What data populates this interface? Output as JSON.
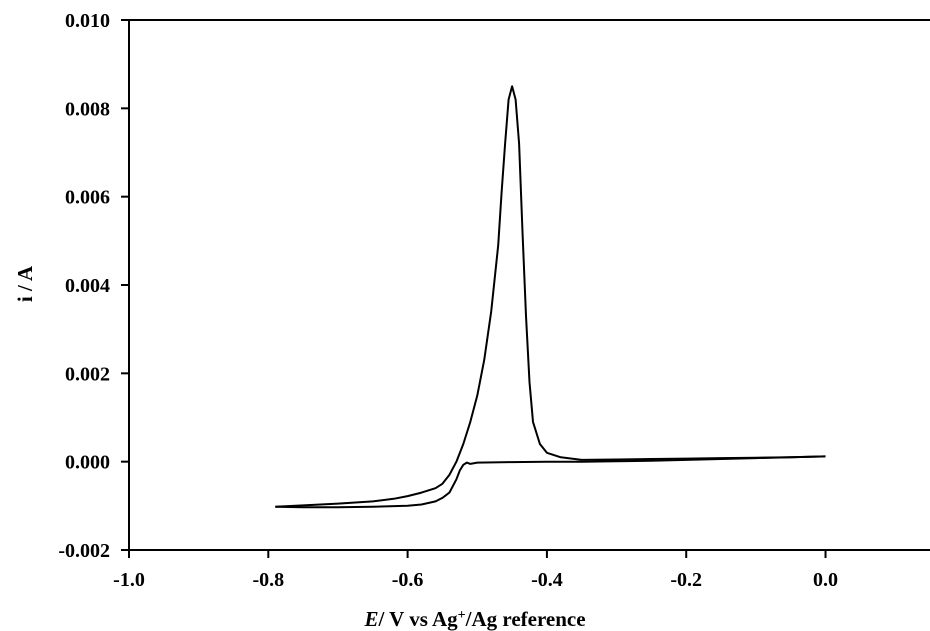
{
  "chart_data": {
    "type": "line",
    "title": "",
    "xlabel_italic": "E",
    "xlabel_rest_a": "/ V vs Ag",
    "xlabel_sup": "+",
    "xlabel_rest_b": "/Ag reference",
    "ylabel": "i / A",
    "xlim": [
      -1.0,
      0.15
    ],
    "ylim": [
      -0.002,
      0.01
    ],
    "x_ticks": [
      "-1.0",
      "-0.8",
      "-0.6",
      "-0.4",
      "-0.2",
      "0.0"
    ],
    "x_tick_values": [
      -1.0,
      -0.8,
      -0.6,
      -0.4,
      -0.2,
      0.0
    ],
    "y_ticks": [
      "-0.002",
      "0.000",
      "0.002",
      "0.004",
      "0.006",
      "0.008",
      "0.010"
    ],
    "y_tick_values": [
      -0.002,
      0.0,
      0.002,
      0.004,
      0.006,
      0.008,
      0.01
    ],
    "grid": false,
    "line_color": "#000000",
    "series": [
      {
        "x": [
          0.0,
          -0.05,
          -0.1,
          -0.15,
          -0.2,
          -0.25,
          -0.3,
          -0.35,
          -0.38,
          -0.4,
          -0.41,
          -0.42,
          -0.425,
          -0.43,
          -0.435,
          -0.44,
          -0.445,
          -0.45,
          -0.455,
          -0.46,
          -0.465,
          -0.47,
          -0.48,
          -0.49,
          -0.5,
          -0.51,
          -0.52,
          -0.53,
          -0.54,
          -0.55,
          -0.56,
          -0.58,
          -0.6,
          -0.62,
          -0.65,
          -0.7,
          -0.75,
          -0.79
        ],
        "y": [
          0.00012,
          0.0001,
          9e-05,
          8e-05,
          7e-05,
          6e-05,
          5e-05,
          4e-05,
          0.0001,
          0.0002,
          0.0004,
          0.0009,
          0.0018,
          0.0033,
          0.0052,
          0.0072,
          0.0082,
          0.0085,
          0.0082,
          0.0072,
          0.0061,
          0.0049,
          0.0034,
          0.0023,
          0.0015,
          0.0009,
          0.0004,
          0.0,
          -0.0003,
          -0.0005,
          -0.0006,
          -0.0007,
          -0.00078,
          -0.00084,
          -0.0009,
          -0.00095,
          -0.00099,
          -0.00102
        ]
      },
      {
        "x": [
          -0.79,
          -0.75,
          -0.7,
          -0.65,
          -0.6,
          -0.58,
          -0.56,
          -0.55,
          -0.54,
          -0.53,
          -0.525,
          -0.52,
          -0.515,
          -0.51,
          -0.5,
          -0.45,
          -0.4,
          -0.35,
          -0.3,
          -0.25,
          -0.2,
          -0.15,
          -0.1,
          -0.05,
          0.0
        ],
        "y": [
          -0.00102,
          -0.00103,
          -0.00103,
          -0.00102,
          -0.001,
          -0.00097,
          -0.0009,
          -0.00082,
          -0.0007,
          -0.0004,
          -0.0002,
          -7e-05,
          -2e-05,
          -5e-05,
          -2e-05,
          -1e-05,
          0.0,
          0.0,
          1e-05,
          2e-05,
          4e-05,
          6e-05,
          8e-05,
          0.0001,
          0.00012
        ]
      }
    ]
  }
}
